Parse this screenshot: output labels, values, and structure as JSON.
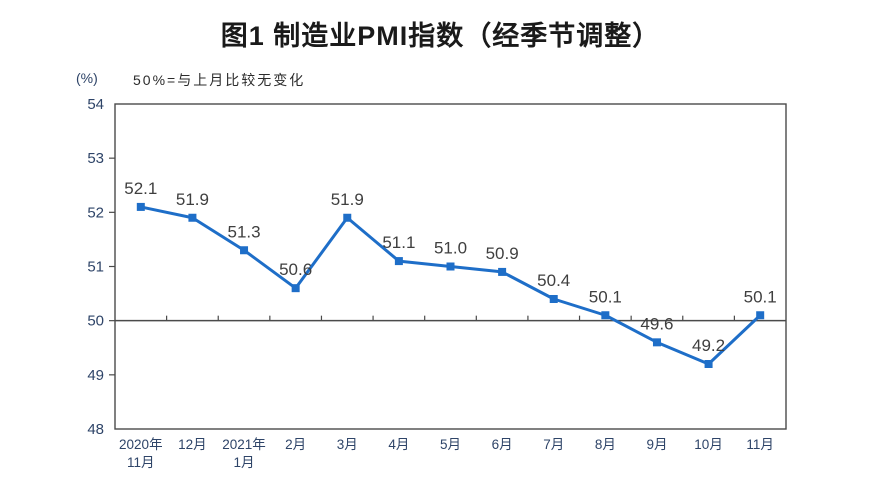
{
  "chart_data": {
    "type": "line",
    "title": "图1 制造业PMI指数（经季节调整）",
    "unit": "(%)",
    "note": "50%=与上月比较无变化",
    "categories": [
      [
        "2020年",
        "11月"
      ],
      [
        "12月"
      ],
      [
        "2021年",
        "1月"
      ],
      [
        "2月"
      ],
      [
        "3月"
      ],
      [
        "4月"
      ],
      [
        "5月"
      ],
      [
        "6月"
      ],
      [
        "7月"
      ],
      [
        "8月"
      ],
      [
        "9月"
      ],
      [
        "10月"
      ],
      [
        "11月"
      ]
    ],
    "values": [
      52.1,
      51.9,
      51.3,
      50.6,
      51.9,
      51.1,
      51.0,
      50.9,
      50.4,
      50.1,
      49.6,
      49.2,
      50.1
    ],
    "ylim": [
      48,
      54
    ],
    "ytick_step": 1,
    "reference_line": 50,
    "grid": "off",
    "legend": "none",
    "marker": "square",
    "data_labels": true,
    "colors": {
      "line": "#1e6ec8",
      "marker": "#1e6ec8",
      "axis": "#4a4a4a",
      "axis_labels": "#2e4468",
      "data_labels": "#3f3f3f",
      "title": "#1a1a1a"
    }
  }
}
